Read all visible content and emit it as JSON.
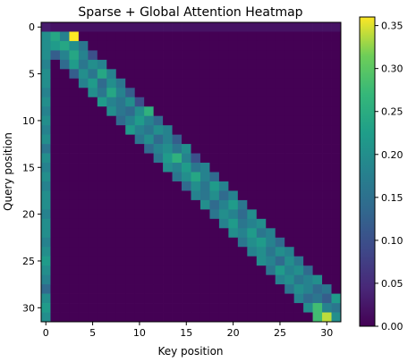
{
  "chart_data": {
    "type": "heatmap",
    "title": "Sparse + Global Attention Heatmap",
    "xlabel": "Key position",
    "ylabel": "Query position",
    "rows": 32,
    "cols": 32,
    "xticks": [
      0,
      5,
      10,
      15,
      20,
      25,
      30
    ],
    "yticks": [
      0,
      5,
      10,
      15,
      20,
      25,
      30
    ],
    "colorbar": {
      "colormap": "viridis",
      "range": [
        0,
        0.36
      ],
      "ticks": [
        0.0,
        0.05,
        0.1,
        0.15,
        0.2,
        0.25,
        0.3,
        0.35
      ],
      "tick_labels": [
        "0.00",
        "0.05",
        "0.10",
        "0.15",
        "0.20",
        "0.25",
        "0.30",
        "0.35"
      ]
    },
    "global_token": 0,
    "band_window": [
      -2,
      2
    ],
    "values": [
      [
        0.03,
        0.02,
        0.02,
        0.02,
        0.02,
        0.02,
        0.02,
        0.02,
        0.02,
        0.02,
        0.02,
        0.02,
        0.02,
        0.02,
        0.02,
        0.02,
        0.02,
        0.02,
        0.02,
        0.02,
        0.02,
        0.02,
        0.02,
        0.02,
        0.02,
        0.02,
        0.02,
        0.02,
        0.02,
        0.02,
        0.02,
        0.02
      ],
      [
        0.2,
        0.24,
        0.18,
        0.36,
        0,
        0,
        0,
        0,
        0,
        0,
        0,
        0,
        0,
        0,
        0,
        0,
        0,
        0,
        0,
        0,
        0,
        0,
        0,
        0,
        0,
        0,
        0,
        0,
        0,
        0,
        0,
        0
      ],
      [
        0.2,
        0.22,
        0.24,
        0.2,
        0.16,
        0,
        0,
        0,
        0,
        0,
        0,
        0,
        0,
        0,
        0,
        0,
        0,
        0,
        0,
        0,
        0,
        0,
        0,
        0,
        0,
        0,
        0,
        0,
        0,
        0,
        0,
        0
      ],
      [
        0.2,
        0.12,
        0.18,
        0.24,
        0.18,
        0.1,
        0,
        0,
        0,
        0,
        0,
        0,
        0,
        0,
        0,
        0,
        0,
        0,
        0,
        0,
        0,
        0,
        0,
        0,
        0,
        0,
        0,
        0,
        0,
        0,
        0,
        0
      ],
      [
        0.18,
        0,
        0.14,
        0.22,
        0.16,
        0.2,
        0.18,
        0,
        0,
        0,
        0,
        0,
        0,
        0,
        0,
        0,
        0,
        0,
        0,
        0,
        0,
        0,
        0,
        0,
        0,
        0,
        0,
        0,
        0,
        0,
        0,
        0
      ],
      [
        0.2,
        0,
        0,
        0.12,
        0.2,
        0.16,
        0.24,
        0.18,
        0,
        0,
        0,
        0,
        0,
        0,
        0,
        0,
        0,
        0,
        0,
        0,
        0,
        0,
        0,
        0,
        0,
        0,
        0,
        0,
        0,
        0,
        0,
        0
      ],
      [
        0.2,
        0,
        0,
        0,
        0.18,
        0.22,
        0.14,
        0.2,
        0.16,
        0,
        0,
        0,
        0,
        0,
        0,
        0,
        0,
        0,
        0,
        0,
        0,
        0,
        0,
        0,
        0,
        0,
        0,
        0,
        0,
        0,
        0,
        0
      ],
      [
        0.18,
        0,
        0,
        0,
        0,
        0.2,
        0.16,
        0.24,
        0.18,
        0.12,
        0,
        0,
        0,
        0,
        0,
        0,
        0,
        0,
        0,
        0,
        0,
        0,
        0,
        0,
        0,
        0,
        0,
        0,
        0,
        0,
        0,
        0
      ],
      [
        0.2,
        0,
        0,
        0,
        0,
        0,
        0.22,
        0.18,
        0.16,
        0.2,
        0.1,
        0,
        0,
        0,
        0,
        0,
        0,
        0,
        0,
        0,
        0,
        0,
        0,
        0,
        0,
        0,
        0,
        0,
        0,
        0,
        0,
        0
      ],
      [
        0.18,
        0,
        0,
        0,
        0,
        0,
        0,
        0.2,
        0.16,
        0.14,
        0.2,
        0.26,
        0,
        0,
        0,
        0,
        0,
        0,
        0,
        0,
        0,
        0,
        0,
        0,
        0,
        0,
        0,
        0,
        0,
        0,
        0,
        0
      ],
      [
        0.2,
        0,
        0,
        0,
        0,
        0,
        0,
        0,
        0.14,
        0.18,
        0.22,
        0.18,
        0.14,
        0,
        0,
        0,
        0,
        0,
        0,
        0,
        0,
        0,
        0,
        0,
        0,
        0,
        0,
        0,
        0,
        0,
        0,
        0
      ],
      [
        0.18,
        0,
        0,
        0,
        0,
        0,
        0,
        0,
        0,
        0.22,
        0.18,
        0.16,
        0.2,
        0.18,
        0,
        0,
        0,
        0,
        0,
        0,
        0,
        0,
        0,
        0,
        0,
        0,
        0,
        0,
        0,
        0,
        0,
        0
      ],
      [
        0.2,
        0,
        0,
        0,
        0,
        0,
        0,
        0,
        0,
        0,
        0.16,
        0.2,
        0.14,
        0.18,
        0.12,
        0,
        0,
        0,
        0,
        0,
        0,
        0,
        0,
        0,
        0,
        0,
        0,
        0,
        0,
        0,
        0,
        0
      ],
      [
        0.16,
        0,
        0,
        0,
        0,
        0,
        0,
        0,
        0,
        0,
        0,
        0.14,
        0.18,
        0.2,
        0.16,
        0.2,
        0,
        0,
        0,
        0,
        0,
        0,
        0,
        0,
        0,
        0,
        0,
        0,
        0,
        0,
        0,
        0
      ],
      [
        0.2,
        0,
        0,
        0,
        0,
        0,
        0,
        0,
        0,
        0,
        0,
        0,
        0.16,
        0.22,
        0.26,
        0.18,
        0.1,
        0,
        0,
        0,
        0,
        0,
        0,
        0,
        0,
        0,
        0,
        0,
        0,
        0,
        0,
        0
      ],
      [
        0.18,
        0,
        0,
        0,
        0,
        0,
        0,
        0,
        0,
        0,
        0,
        0,
        0,
        0.2,
        0.18,
        0.22,
        0.16,
        0.18,
        0,
        0,
        0,
        0,
        0,
        0,
        0,
        0,
        0,
        0,
        0,
        0,
        0,
        0
      ],
      [
        0.2,
        0,
        0,
        0,
        0,
        0,
        0,
        0,
        0,
        0,
        0,
        0,
        0,
        0,
        0.16,
        0.2,
        0.24,
        0.18,
        0.14,
        0,
        0,
        0,
        0,
        0,
        0,
        0,
        0,
        0,
        0,
        0,
        0,
        0
      ],
      [
        0.18,
        0,
        0,
        0,
        0,
        0,
        0,
        0,
        0,
        0,
        0,
        0,
        0,
        0,
        0,
        0.14,
        0.2,
        0.16,
        0.22,
        0.18,
        0,
        0,
        0,
        0,
        0,
        0,
        0,
        0,
        0,
        0,
        0,
        0
      ],
      [
        0.2,
        0,
        0,
        0,
        0,
        0,
        0,
        0,
        0,
        0,
        0,
        0,
        0,
        0,
        0,
        0,
        0.18,
        0.16,
        0.2,
        0.14,
        0.18,
        0,
        0,
        0,
        0,
        0,
        0,
        0,
        0,
        0,
        0,
        0
      ],
      [
        0.2,
        0,
        0,
        0,
        0,
        0,
        0,
        0,
        0,
        0,
        0,
        0,
        0,
        0,
        0,
        0,
        0,
        0.2,
        0.14,
        0.18,
        0.22,
        0.16,
        0,
        0,
        0,
        0,
        0,
        0,
        0,
        0,
        0,
        0
      ],
      [
        0.18,
        0,
        0,
        0,
        0,
        0,
        0,
        0,
        0,
        0,
        0,
        0,
        0,
        0,
        0,
        0,
        0,
        0,
        0.16,
        0.2,
        0.18,
        0.14,
        0.2,
        0,
        0,
        0,
        0,
        0,
        0,
        0,
        0,
        0
      ],
      [
        0.2,
        0,
        0,
        0,
        0,
        0,
        0,
        0,
        0,
        0,
        0,
        0,
        0,
        0,
        0,
        0,
        0,
        0,
        0,
        0.18,
        0.22,
        0.16,
        0.18,
        0.2,
        0,
        0,
        0,
        0,
        0,
        0,
        0,
        0
      ],
      [
        0.2,
        0,
        0,
        0,
        0,
        0,
        0,
        0,
        0,
        0,
        0,
        0,
        0,
        0,
        0,
        0,
        0,
        0,
        0,
        0,
        0.2,
        0.18,
        0.22,
        0.16,
        0.18,
        0,
        0,
        0,
        0,
        0,
        0,
        0
      ],
      [
        0.18,
        0,
        0,
        0,
        0,
        0,
        0,
        0,
        0,
        0,
        0,
        0,
        0,
        0,
        0,
        0,
        0,
        0,
        0,
        0,
        0,
        0.16,
        0.2,
        0.22,
        0.18,
        0.14,
        0,
        0,
        0,
        0,
        0,
        0
      ],
      [
        0.2,
        0,
        0,
        0,
        0,
        0,
        0,
        0,
        0,
        0,
        0,
        0,
        0,
        0,
        0,
        0,
        0,
        0,
        0,
        0,
        0,
        0,
        0.18,
        0.2,
        0.16,
        0.2,
        0.18,
        0,
        0,
        0,
        0,
        0
      ],
      [
        0.22,
        0,
        0,
        0,
        0,
        0,
        0,
        0,
        0,
        0,
        0,
        0,
        0,
        0,
        0,
        0,
        0,
        0,
        0,
        0,
        0,
        0,
        0,
        0.2,
        0.18,
        0.14,
        0.2,
        0.16,
        0,
        0,
        0,
        0
      ],
      [
        0.2,
        0,
        0,
        0,
        0,
        0,
        0,
        0,
        0,
        0,
        0,
        0,
        0,
        0,
        0,
        0,
        0,
        0,
        0,
        0,
        0,
        0,
        0,
        0,
        0.16,
        0.22,
        0.18,
        0.2,
        0.14,
        0,
        0,
        0
      ],
      [
        0.18,
        0,
        0,
        0,
        0,
        0,
        0,
        0,
        0,
        0,
        0,
        0,
        0,
        0,
        0,
        0,
        0,
        0,
        0,
        0,
        0,
        0,
        0,
        0,
        0,
        0.18,
        0.2,
        0.16,
        0.18,
        0.2,
        0,
        0
      ],
      [
        0.14,
        0,
        0,
        0,
        0,
        0,
        0,
        0,
        0,
        0,
        0,
        0,
        0,
        0,
        0,
        0,
        0,
        0,
        0,
        0,
        0,
        0,
        0,
        0,
        0,
        0,
        0.16,
        0.2,
        0.18,
        0.14,
        0.16,
        0
      ],
      [
        0.2,
        0,
        0,
        0,
        0,
        0,
        0,
        0,
        0,
        0,
        0,
        0,
        0,
        0,
        0,
        0,
        0,
        0,
        0,
        0,
        0,
        0,
        0,
        0,
        0,
        0,
        0,
        0.18,
        0.14,
        0.16,
        0.12,
        0.22
      ],
      [
        0.22,
        0,
        0,
        0,
        0,
        0,
        0,
        0,
        0,
        0,
        0,
        0,
        0,
        0,
        0,
        0,
        0,
        0,
        0,
        0,
        0,
        0,
        0,
        0,
        0,
        0,
        0,
        0,
        0.2,
        0.28,
        0.18,
        0.16
      ],
      [
        0.2,
        0,
        0,
        0,
        0,
        0,
        0,
        0,
        0,
        0,
        0,
        0,
        0,
        0,
        0,
        0,
        0,
        0,
        0,
        0,
        0,
        0,
        0,
        0,
        0,
        0,
        0,
        0,
        0,
        0.28,
        0.34,
        0.2
      ]
    ]
  }
}
